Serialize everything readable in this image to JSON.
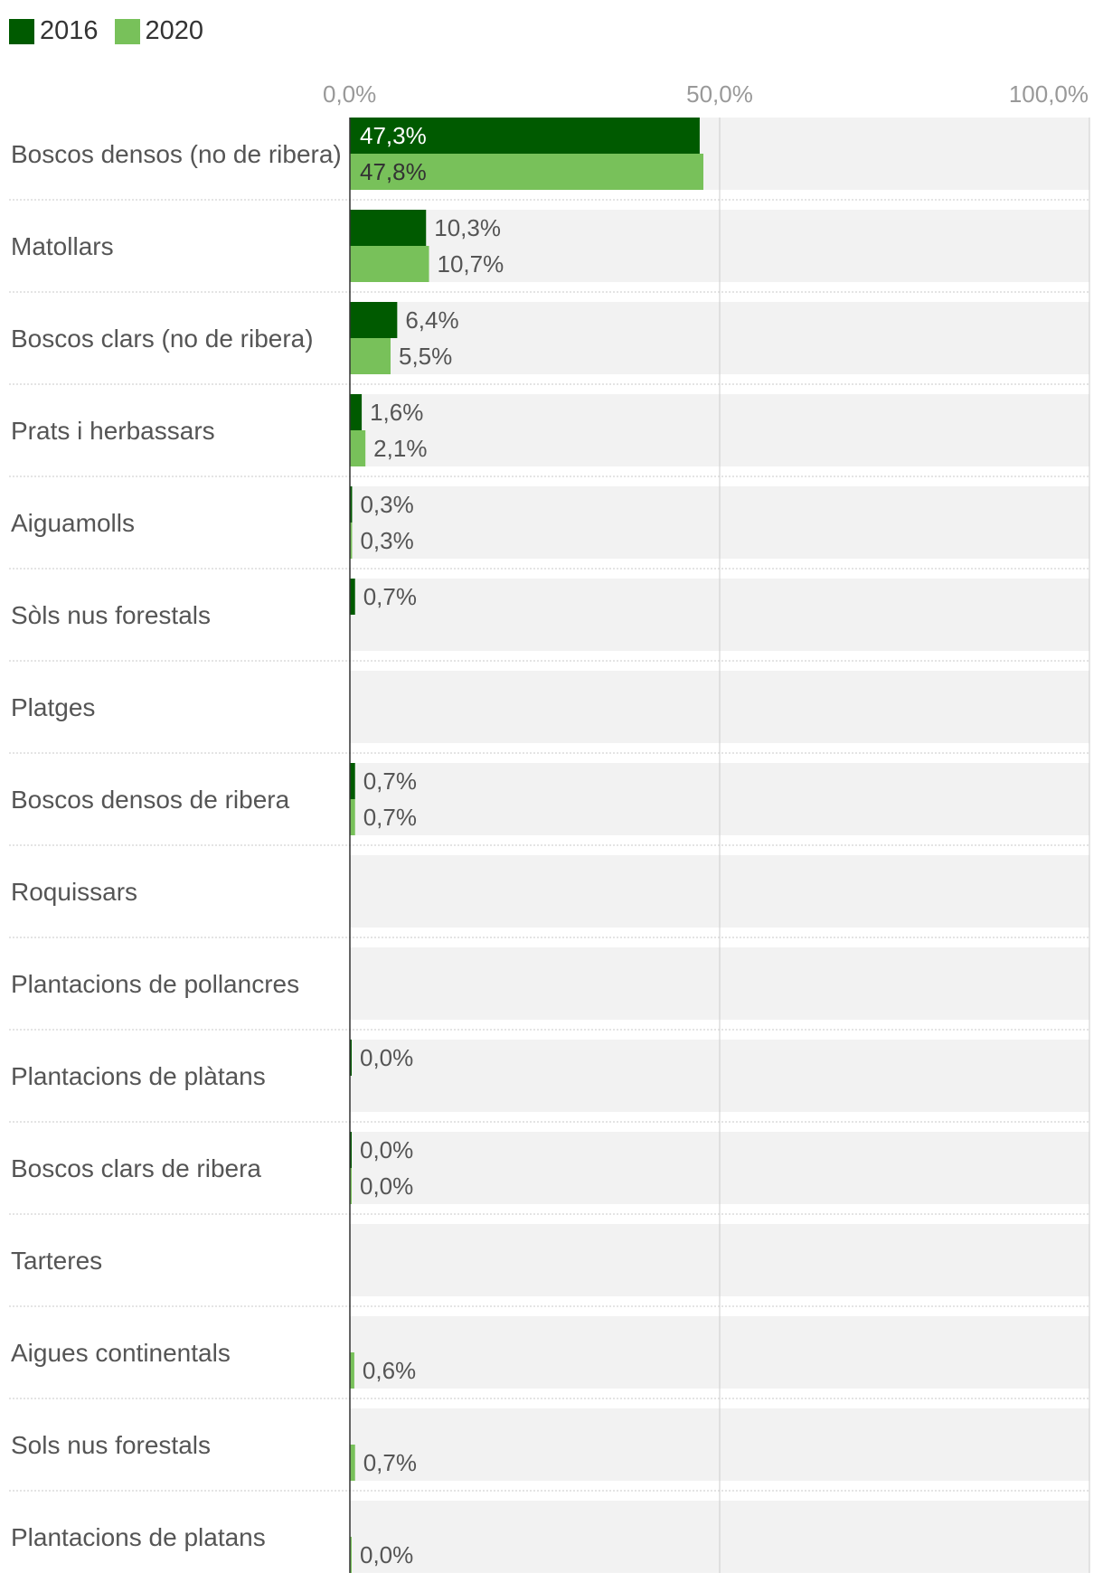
{
  "colors": {
    "series_2016": "#005a00",
    "series_2020": "#78c15a",
    "row_bg": "#f2f2f2",
    "axis": "#333333",
    "grid": "#cccccc",
    "tick_text": "#999999",
    "label_text": "#555555",
    "value_text": "#555555",
    "value_text_inside": "#ffffff"
  },
  "legend": [
    {
      "label": "2016",
      "color_key": "series_2016"
    },
    {
      "label": "2020",
      "color_key": "series_2020"
    }
  ],
  "chart_data": {
    "type": "bar",
    "orientation": "horizontal",
    "xlim": [
      0,
      100
    ],
    "x_ticks": [
      "0,0%",
      "50,0%",
      "100,0%"
    ],
    "x_tick_values": [
      0,
      50,
      100
    ],
    "grid": true,
    "legend_position": "top-left",
    "categories": [
      "Boscos densos (no de ribera)",
      "Matollars",
      "Boscos clars (no de ribera)",
      "Prats i herbassars",
      "Aiguamolls",
      "Sòls nus forestals",
      "Platges",
      "Boscos densos de ribera",
      "Roquissars",
      "Plantacions de pollancres",
      "Plantacions de plàtans",
      "Boscos clars de ribera",
      "Tarteres",
      "Aigues continentals",
      "Sols nus forestals",
      "Plantacions de platans"
    ],
    "series": [
      {
        "name": "2016",
        "values": [
          47.3,
          10.3,
          6.4,
          1.6,
          0.3,
          0.7,
          null,
          0.7,
          null,
          null,
          0.0,
          0.0,
          null,
          null,
          null,
          null
        ],
        "labels": [
          "47,3%",
          "10,3%",
          "6,4%",
          "1,6%",
          "0,3%",
          "0,7%",
          null,
          "0,7%",
          null,
          null,
          "0,0%",
          "0,0%",
          null,
          null,
          null,
          null
        ]
      },
      {
        "name": "2020",
        "values": [
          47.8,
          10.7,
          5.5,
          2.1,
          0.3,
          null,
          null,
          0.7,
          null,
          null,
          null,
          0.0,
          null,
          0.6,
          0.7,
          0.0
        ],
        "labels": [
          "47,8%",
          "10,7%",
          "5,5%",
          "2,1%",
          "0,3%",
          null,
          null,
          "0,7%",
          null,
          null,
          null,
          "0,0%",
          null,
          "0,6%",
          "0,7%",
          "0,0%"
        ]
      }
    ]
  }
}
